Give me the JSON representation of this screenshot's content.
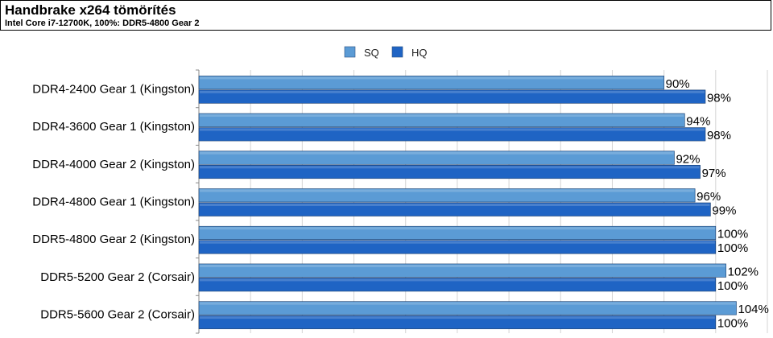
{
  "header": {
    "title": "Handbrake x264 tömörítés",
    "subtitle": "Intel Core i7-12700K, 100%: DDR5-4800 Gear 2"
  },
  "chart_data": {
    "type": "bar",
    "orientation": "horizontal",
    "title": "Handbrake x264 tömörítés",
    "subtitle": "Intel Core i7-12700K, 100%: DDR5-4800 Gear 2",
    "categories": [
      "DDR4-2400 Gear 1 (Kingston)",
      "DDR4-3600 Gear 1 (Kingston)",
      "DDR4-4000 Gear 2 (Kingston)",
      "DDR4-4800 Gear 1 (Kingston)",
      "DDR5-4800 Gear 2 (Kingston)",
      "DDR5-5200 Gear 2 (Corsair)",
      "DDR5-5600 Gear 2 (Corsair)"
    ],
    "series": [
      {
        "name": "SQ",
        "color": "#5b9bd5",
        "values": [
          90,
          94,
          92,
          96,
          100,
          102,
          104
        ]
      },
      {
        "name": "HQ",
        "color": "#1f64c4",
        "values": [
          98,
          98,
          97,
          99,
          100,
          100,
          100
        ]
      }
    ],
    "value_suffix": "%",
    "xlim": [
      0,
      110
    ],
    "grid": true,
    "legend_position": "top-center"
  }
}
